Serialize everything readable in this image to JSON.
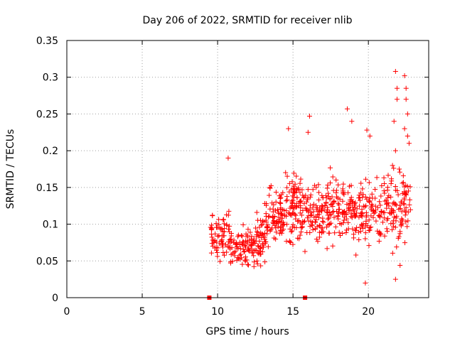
{
  "chart_data": {
    "type": "scatter",
    "title": "Day 206 of 2022, SRMTID for receiver nlib",
    "xlabel": "GPS time / hours",
    "ylabel": "SRMTID / TECUs",
    "xlim": [
      0,
      24
    ],
    "ylim": [
      0,
      0.35
    ],
    "xticks": [
      0,
      5,
      10,
      15,
      20
    ],
    "xtick_labels": [
      "0",
      "5",
      "10",
      "15",
      "20"
    ],
    "yticks": [
      0,
      0.05,
      0.1,
      0.15,
      0.2,
      0.25,
      0.3,
      0.35
    ],
    "ytick_labels": [
      "0",
      "0.05",
      "0.1",
      "0.15",
      "0.2",
      "0.25",
      "0.3",
      "0.35"
    ],
    "grid": true,
    "marker": "plus",
    "color": "#ff0000",
    "zero_markers": [
      {
        "x": 9.45,
        "y": 0
      },
      {
        "x": 15.8,
        "y": 0
      }
    ],
    "segments": [
      {
        "x_start": 9.5,
        "x_end": 10.8,
        "base": 0.085,
        "spread": 0.035,
        "n": 70
      },
      {
        "x_start": 10.8,
        "x_end": 12.6,
        "base": 0.07,
        "spread": 0.028,
        "n": 95
      },
      {
        "x_start": 12.6,
        "x_end": 13.2,
        "base": 0.085,
        "spread": 0.035,
        "n": 45
      },
      {
        "x_start": 13.2,
        "x_end": 14.5,
        "base": 0.11,
        "spread": 0.035,
        "n": 90
      },
      {
        "x_start": 14.5,
        "x_end": 15.5,
        "base": 0.12,
        "spread": 0.045,
        "n": 80
      },
      {
        "x_start": 15.5,
        "x_end": 17.0,
        "base": 0.115,
        "spread": 0.04,
        "n": 95
      },
      {
        "x_start": 17.0,
        "x_end": 19.0,
        "base": 0.12,
        "spread": 0.045,
        "n": 120
      },
      {
        "x_start": 19.0,
        "x_end": 21.0,
        "base": 0.115,
        "spread": 0.04,
        "n": 110
      },
      {
        "x_start": 21.0,
        "x_end": 22.8,
        "base": 0.125,
        "spread": 0.05,
        "n": 110
      }
    ],
    "outliers": [
      {
        "x": 10.7,
        "y": 0.19
      },
      {
        "x": 14.7,
        "y": 0.23
      },
      {
        "x": 16.1,
        "y": 0.247
      },
      {
        "x": 16.0,
        "y": 0.225
      },
      {
        "x": 18.6,
        "y": 0.257
      },
      {
        "x": 18.9,
        "y": 0.24
      },
      {
        "x": 19.9,
        "y": 0.228
      },
      {
        "x": 20.1,
        "y": 0.22
      },
      {
        "x": 19.8,
        "y": 0.02
      },
      {
        "x": 21.7,
        "y": 0.24
      },
      {
        "x": 21.8,
        "y": 0.025
      },
      {
        "x": 22.1,
        "y": 0.044
      },
      {
        "x": 21.8,
        "y": 0.308
      },
      {
        "x": 21.9,
        "y": 0.285
      },
      {
        "x": 22.4,
        "y": 0.302
      },
      {
        "x": 22.5,
        "y": 0.285
      },
      {
        "x": 22.5,
        "y": 0.27
      },
      {
        "x": 22.6,
        "y": 0.25
      },
      {
        "x": 22.4,
        "y": 0.23
      },
      {
        "x": 22.7,
        "y": 0.21
      },
      {
        "x": 21.8,
        "y": 0.2
      },
      {
        "x": 21.6,
        "y": 0.18
      },
      {
        "x": 21.9,
        "y": 0.27
      },
      {
        "x": 22.6,
        "y": 0.22
      }
    ]
  }
}
